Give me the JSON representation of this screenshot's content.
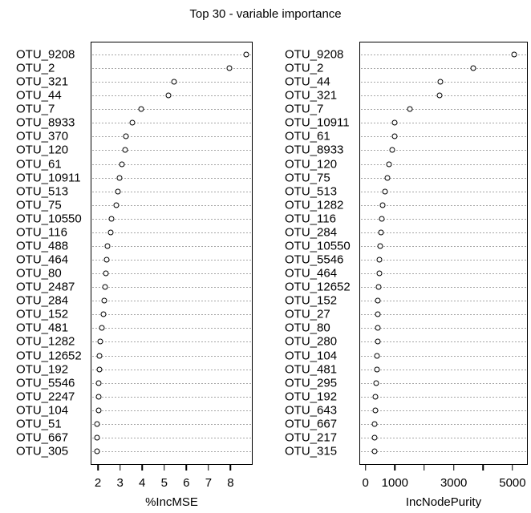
{
  "title": "Top 30 - variable importance",
  "chart_data": [
    {
      "type": "scatter",
      "variant": "dotchart",
      "xlabel": "%IncMSE",
      "xlim": [
        1.67,
        9.0
      ],
      "xticks": [
        2,
        3,
        4,
        5,
        6,
        7,
        8
      ],
      "xtick_labels": [
        "2",
        "3",
        "4",
        "5",
        "6",
        "7",
        "8"
      ],
      "grid": "dashed-horizontal",
      "legend": "none",
      "order": "top-to-bottom",
      "categories": [
        "OTU_9208",
        "OTU_2",
        "OTU_321",
        "OTU_44",
        "OTU_7",
        "OTU_8933",
        "OTU_370",
        "OTU_120",
        "OTU_61",
        "OTU_10911",
        "OTU_513",
        "OTU_75",
        "OTU_10550",
        "OTU_116",
        "OTU_488",
        "OTU_464",
        "OTU_80",
        "OTU_2487",
        "OTU_284",
        "OTU_152",
        "OTU_481",
        "OTU_1282",
        "OTU_12652",
        "OTU_192",
        "OTU_5546",
        "OTU_2247",
        "OTU_104",
        "OTU_51",
        "OTU_667",
        "OTU_305"
      ],
      "values": [
        8.7,
        7.95,
        5.45,
        5.2,
        3.97,
        3.55,
        3.26,
        3.24,
        3.1,
        2.96,
        2.9,
        2.83,
        2.6,
        2.57,
        2.42,
        2.41,
        2.35,
        2.33,
        2.27,
        2.25,
        2.16,
        2.12,
        2.08,
        2.07,
        2.04,
        2.03,
        2.02,
        1.97,
        1.96,
        1.95
      ]
    },
    {
      "type": "scatter",
      "variant": "dotchart",
      "xlabel": "IncNodePurity",
      "xlim": [
        -210,
        5520
      ],
      "xticks": [
        0,
        1000,
        2000,
        3000,
        4000,
        5000
      ],
      "xtick_labels": [
        "0",
        "1000",
        "",
        "3000",
        "",
        "5000"
      ],
      "grid": "dashed-horizontal",
      "legend": "none",
      "order": "top-to-bottom",
      "categories": [
        "OTU_9208",
        "OTU_2",
        "OTU_44",
        "OTU_321",
        "OTU_7",
        "OTU_10911",
        "OTU_61",
        "OTU_8933",
        "OTU_120",
        "OTU_75",
        "OTU_513",
        "OTU_1282",
        "OTU_116",
        "OTU_284",
        "OTU_10550",
        "OTU_5546",
        "OTU_464",
        "OTU_12652",
        "OTU_152",
        "OTU_27",
        "OTU_80",
        "OTU_280",
        "OTU_104",
        "OTU_481",
        "OTU_295",
        "OTU_192",
        "OTU_643",
        "OTU_667",
        "OTU_217",
        "OTU_315"
      ],
      "values": [
        5050,
        3670,
        2540,
        2520,
        1510,
        1000,
        980,
        900,
        810,
        750,
        660,
        570,
        560,
        535,
        510,
        470,
        465,
        455,
        430,
        425,
        420,
        415,
        395,
        380,
        375,
        345,
        330,
        315,
        305,
        300
      ]
    }
  ],
  "style": {
    "marker": "open-circle",
    "marker_color": "#000000",
    "grid_color": "#a6a6a6",
    "text_color": "#000000",
    "background": "#ffffff"
  }
}
